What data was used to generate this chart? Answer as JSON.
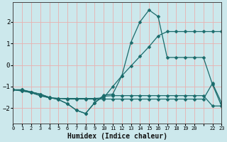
{
  "xlabel": "Humidex (Indice chaleur)",
  "bg_color": "#cce8ec",
  "grid_color": "#e8b0b0",
  "line_color": "#1a6b6b",
  "xlim": [
    0,
    23
  ],
  "ylim": [
    -2.7,
    2.9
  ],
  "yticks": [
    -2,
    -1,
    0,
    1,
    2
  ],
  "xtick_labels": [
    "0",
    "1",
    "2",
    "3",
    "4",
    "5",
    "6",
    "7",
    "8",
    "9",
    "10",
    "11",
    "12",
    "13",
    "14",
    "15",
    "16",
    "17",
    "18",
    "19",
    "20",
    "",
    "22",
    "23"
  ],
  "series": [
    [
      -1.15,
      -1.15,
      -1.25,
      -1.35,
      -1.5,
      -1.6,
      -1.8,
      -2.1,
      -2.25,
      -1.75,
      -1.4,
      -1.35,
      -0.5,
      1.05,
      2.0,
      2.55,
      2.25,
      0.35,
      0.35,
      0.35,
      0.35,
      0.35,
      -0.9,
      -1.9
    ],
    [
      -1.15,
      -1.15,
      -1.25,
      -1.35,
      -1.5,
      -1.6,
      -1.8,
      -2.1,
      -2.25,
      -1.75,
      -1.45,
      -1.42,
      -1.42,
      -1.42,
      -1.42,
      -1.42,
      -1.42,
      -1.42,
      -1.42,
      -1.42,
      -1.42,
      -1.42,
      -1.9,
      -1.9
    ],
    [
      -1.15,
      -1.2,
      -1.28,
      -1.42,
      -1.52,
      -1.55,
      -1.55,
      -1.55,
      -1.55,
      -1.55,
      -1.52,
      -1.0,
      -0.5,
      -0.05,
      0.4,
      0.85,
      1.35,
      1.55,
      1.55,
      1.55,
      1.55,
      1.55,
      1.55,
      1.55
    ],
    [
      -1.15,
      -1.2,
      -1.28,
      -1.42,
      -1.52,
      -1.55,
      -1.58,
      -1.58,
      -1.58,
      -1.58,
      -1.58,
      -1.58,
      -1.58,
      -1.58,
      -1.58,
      -1.58,
      -1.58,
      -1.58,
      -1.58,
      -1.58,
      -1.58,
      -1.58,
      -0.85,
      -1.75
    ]
  ],
  "marker": "D",
  "marker_size": 2.5,
  "linewidth": 0.9
}
